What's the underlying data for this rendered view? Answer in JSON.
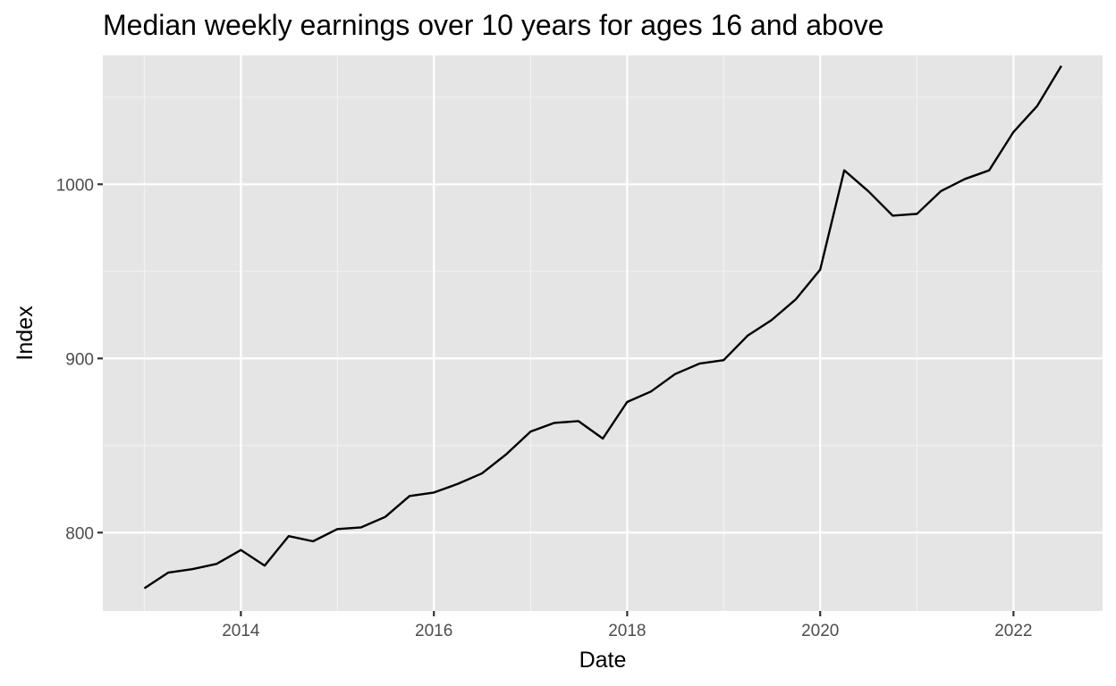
{
  "chart_data": {
    "type": "line",
    "title": "Median weekly earnings over 10 years for ages 16 and above",
    "xlabel": "Date",
    "ylabel": "Index",
    "x_tick_labels": [
      "2014",
      "2016",
      "2018",
      "2020",
      "2022"
    ],
    "y_tick_labels": [
      "800",
      "900",
      "1000"
    ],
    "y_ticks": [
      800,
      900,
      1000
    ],
    "xlim": [
      "2012-07-28",
      "2022-12-04"
    ],
    "ylim": [
      755,
      1074
    ],
    "grid": true,
    "colors": {
      "panel": "#e5e5e5",
      "line": "#000000",
      "grid": "#ffffff"
    },
    "x": [
      "2013-01-01",
      "2013-04-01",
      "2013-07-01",
      "2013-10-01",
      "2014-01-01",
      "2014-04-01",
      "2014-07-01",
      "2014-10-01",
      "2015-01-01",
      "2015-04-01",
      "2015-07-01",
      "2015-10-01",
      "2016-01-01",
      "2016-04-01",
      "2016-07-01",
      "2016-10-01",
      "2017-01-01",
      "2017-04-01",
      "2017-07-01",
      "2017-10-01",
      "2018-01-01",
      "2018-04-01",
      "2018-07-01",
      "2018-10-01",
      "2019-01-01",
      "2019-04-01",
      "2019-07-01",
      "2019-10-01",
      "2020-01-01",
      "2020-04-01",
      "2020-07-01",
      "2020-10-01",
      "2021-01-01",
      "2021-04-01",
      "2021-07-01",
      "2021-10-01",
      "2022-01-01",
      "2022-04-01",
      "2022-07-01"
    ],
    "series": [
      {
        "values": [
          768,
          777,
          779,
          782,
          790,
          781,
          798,
          795,
          802,
          803,
          809,
          821,
          823,
          828,
          834,
          845,
          858,
          863,
          864,
          854,
          875,
          881,
          891,
          897,
          899,
          913,
          922,
          934,
          951,
          1008,
          996,
          982,
          983,
          996,
          1003,
          1008,
          1030,
          1045,
          1068
        ]
      }
    ]
  }
}
